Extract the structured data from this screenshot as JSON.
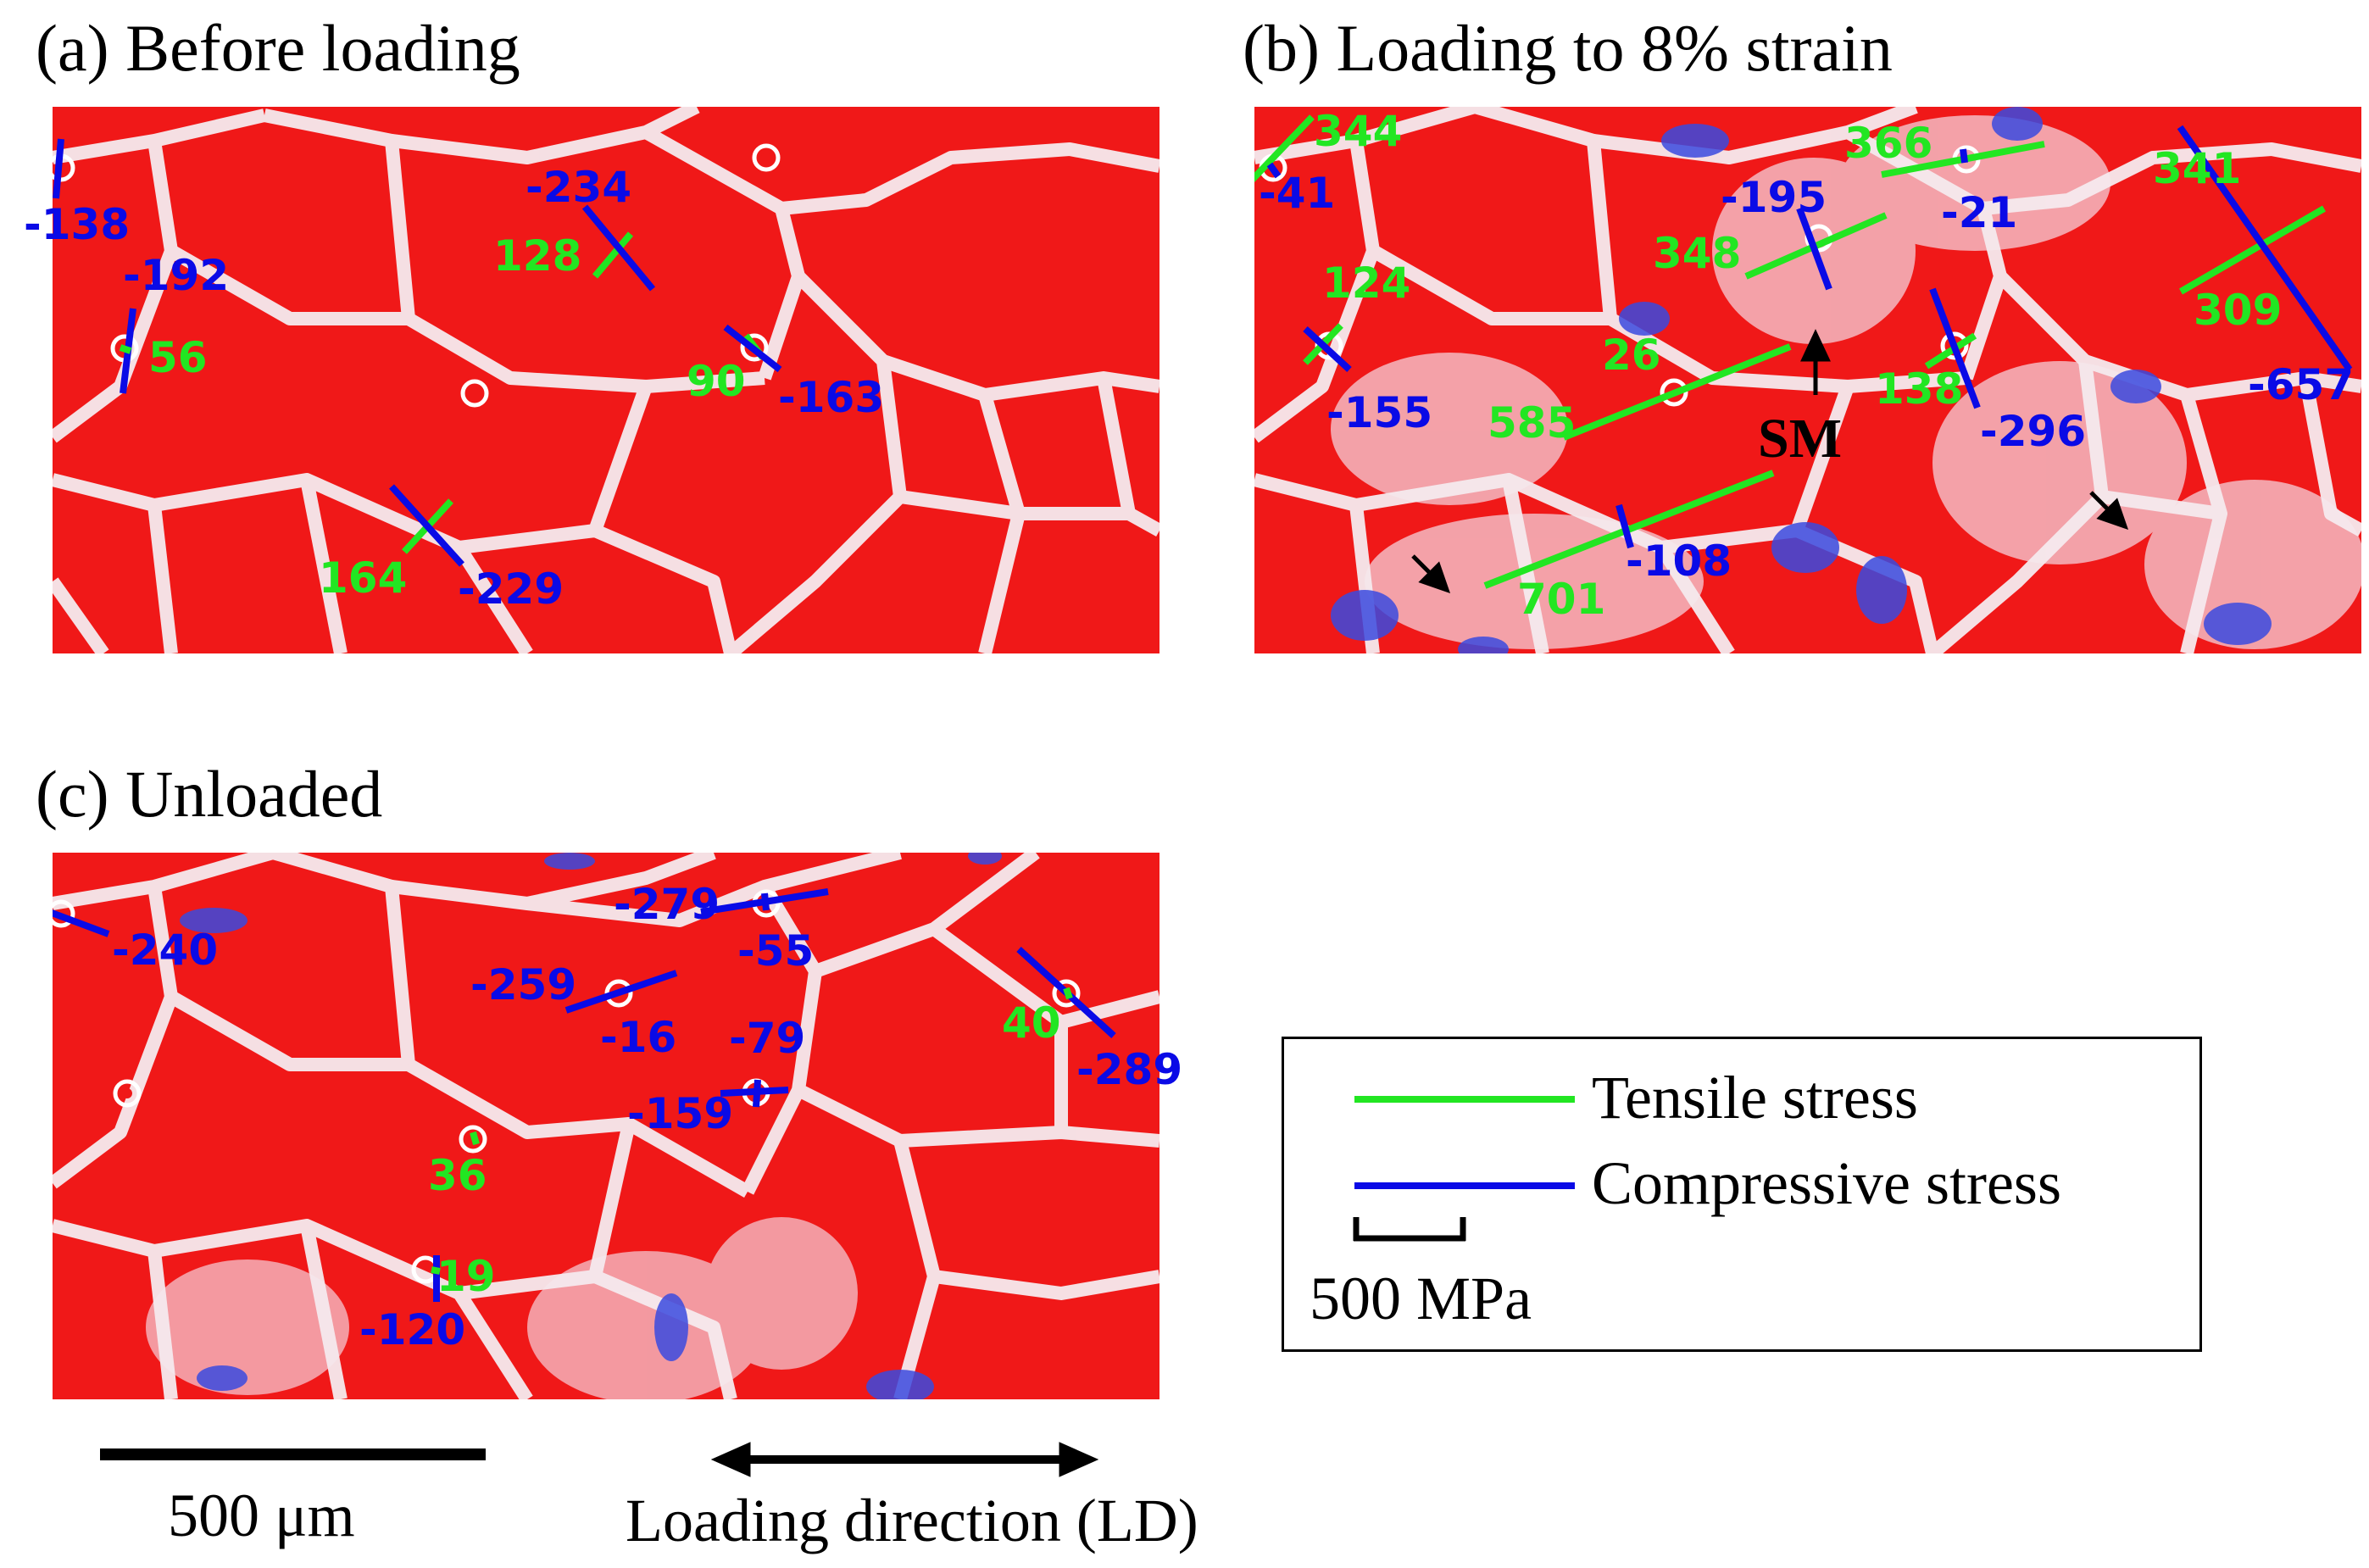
{
  "panels": [
    {
      "id": "a",
      "title": "(a) Before loading",
      "annotations": [
        {
          "text": "-138",
          "kind": "compressive"
        },
        {
          "text": "-192",
          "kind": "compressive"
        },
        {
          "text": "56",
          "kind": "tensile"
        },
        {
          "text": "-234",
          "kind": "compressive"
        },
        {
          "text": "128",
          "kind": "tensile"
        },
        {
          "text": "90",
          "kind": "tensile"
        },
        {
          "text": "-163",
          "kind": "compressive"
        },
        {
          "text": "164",
          "kind": "tensile"
        },
        {
          "text": "-229",
          "kind": "compressive"
        }
      ]
    },
    {
      "id": "b",
      "title": "(b) Loading to 8% strain",
      "annotations": [
        {
          "text": "344",
          "kind": "tensile"
        },
        {
          "text": "-41",
          "kind": "compressive"
        },
        {
          "text": "366",
          "kind": "tensile"
        },
        {
          "text": "-21",
          "kind": "compressive"
        },
        {
          "text": "341",
          "kind": "tensile"
        },
        {
          "text": "-195",
          "kind": "compressive"
        },
        {
          "text": "348",
          "kind": "tensile"
        },
        {
          "text": "124",
          "kind": "tensile"
        },
        {
          "text": "26",
          "kind": "tensile"
        },
        {
          "text": "309",
          "kind": "tensile"
        },
        {
          "text": "-155",
          "kind": "compressive"
        },
        {
          "text": "585",
          "kind": "tensile"
        },
        {
          "text": "138",
          "kind": "tensile"
        },
        {
          "text": "-657",
          "kind": "compressive"
        },
        {
          "text": "-296",
          "kind": "compressive"
        },
        {
          "text": "-108",
          "kind": "compressive"
        },
        {
          "text": "701",
          "kind": "tensile"
        }
      ],
      "marker": "SM"
    },
    {
      "id": "c",
      "title": "(c) Unloaded",
      "annotations": [
        {
          "text": "-240",
          "kind": "compressive"
        },
        {
          "text": "-279",
          "kind": "compressive"
        },
        {
          "text": "-55",
          "kind": "compressive"
        },
        {
          "text": "-259",
          "kind": "compressive"
        },
        {
          "text": "-16",
          "kind": "compressive"
        },
        {
          "text": "-79",
          "kind": "compressive"
        },
        {
          "text": "40",
          "kind": "tensile"
        },
        {
          "text": "-289",
          "kind": "compressive"
        },
        {
          "text": "-159",
          "kind": "compressive"
        },
        {
          "text": "36",
          "kind": "tensile"
        },
        {
          "text": "19",
          "kind": "tensile"
        },
        {
          "text": "-120",
          "kind": "compressive"
        }
      ]
    }
  ],
  "legend": {
    "tensile": "Tensile stress",
    "compressive": "Compressive stress",
    "scale": "500 MPa"
  },
  "scale_bar": "500 μm",
  "loading_direction": "Loading direction (LD)",
  "colors": {
    "tensile": "#22e622",
    "compressive": "#0a0ae6",
    "map_red": "#f01818",
    "boundary": "#f4e8ee",
    "compressive_zone": "#3a4adf"
  }
}
